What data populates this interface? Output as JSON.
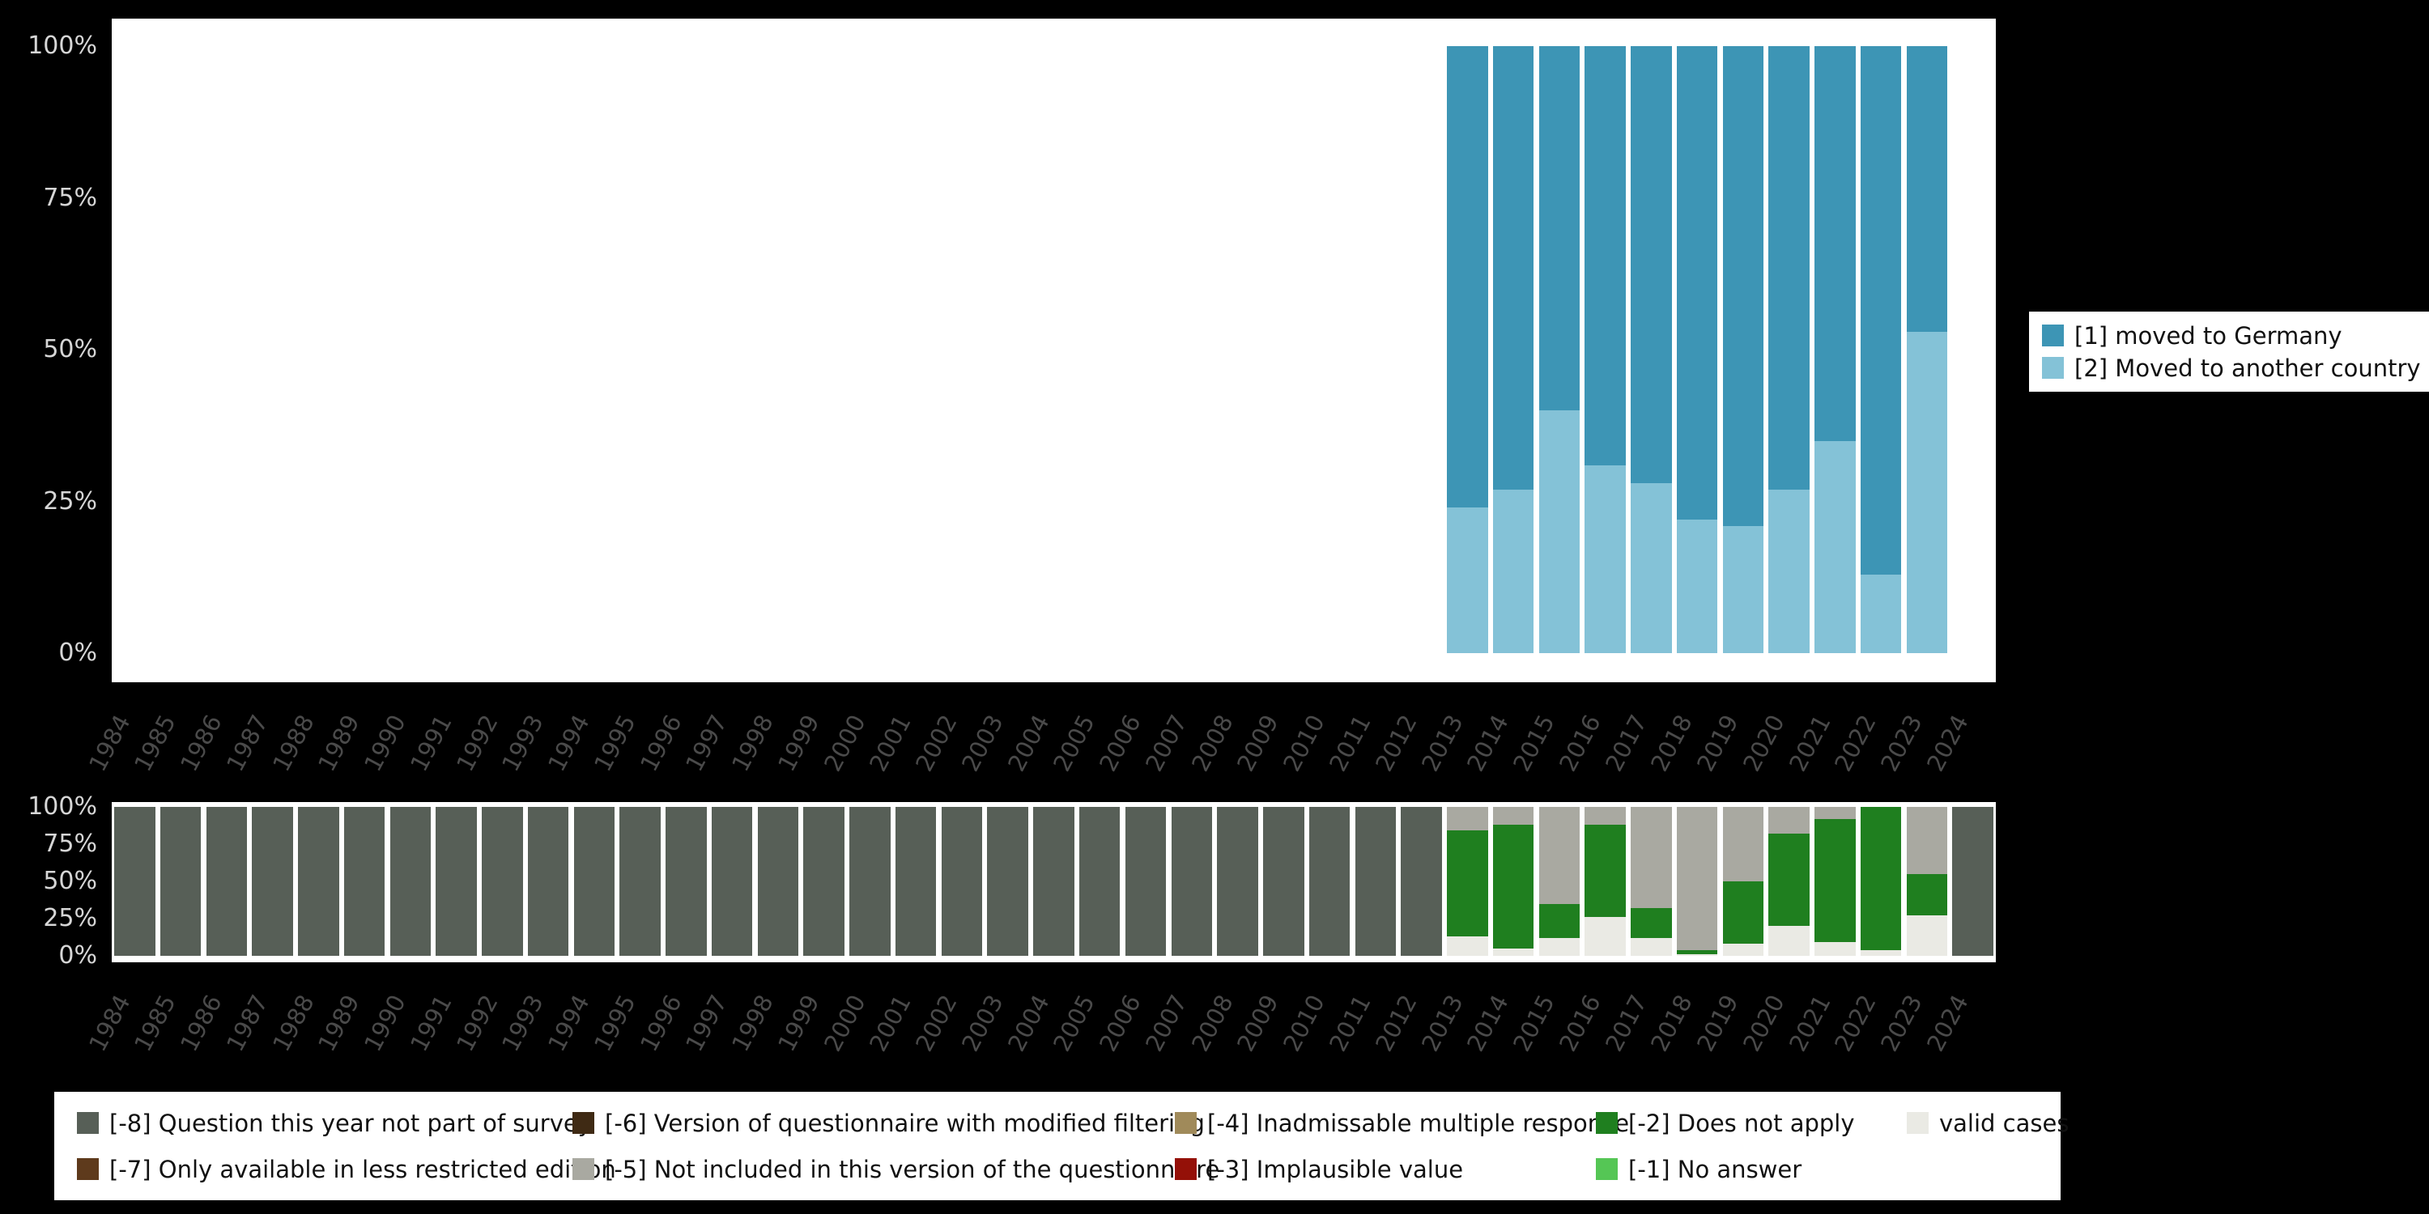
{
  "page": {
    "background": "#000000",
    "plot_background": "#ffffff",
    "y_axis_text_color": "#d6d6d6",
    "x_axis_text_color": "#4a4a4a"
  },
  "chart_data": {
    "years": [
      1984,
      1985,
      1986,
      1987,
      1988,
      1989,
      1990,
      1991,
      1992,
      1993,
      1994,
      1995,
      1996,
      1997,
      1998,
      1999,
      2000,
      2001,
      2002,
      2003,
      2004,
      2005,
      2006,
      2007,
      2008,
      2009,
      2010,
      2011,
      2012,
      2013,
      2014,
      2015,
      2016,
      2017,
      2018,
      2019,
      2020,
      2021,
      2022,
      2023,
      2024
    ],
    "values_chart": {
      "type": "bar",
      "stacked": true,
      "ylim": [
        0,
        100
      ],
      "yticks": [
        {
          "value": 100,
          "label": "100%"
        },
        {
          "value": 75,
          "label": "75%"
        },
        {
          "value": 50,
          "label": "50%"
        },
        {
          "value": 25,
          "label": "25%"
        },
        {
          "value": 0,
          "label": "0%"
        }
      ],
      "series_meta": [
        {
          "key": "moved_to_germany",
          "label": "[1] moved to Germany",
          "color": "#3d95b5"
        },
        {
          "key": "moved_to_another_country",
          "label": "[2] Moved to another country",
          "color": "#84c2d7"
        }
      ],
      "data": [
        {
          "year": 2013,
          "moved_to_germany": 76,
          "moved_to_another_country": 24
        },
        {
          "year": 2014,
          "moved_to_germany": 73,
          "moved_to_another_country": 27
        },
        {
          "year": 2015,
          "moved_to_germany": 60,
          "moved_to_another_country": 40
        },
        {
          "year": 2016,
          "moved_to_germany": 69,
          "moved_to_another_country": 31
        },
        {
          "year": 2017,
          "moved_to_germany": 72,
          "moved_to_another_country": 28
        },
        {
          "year": 2018,
          "moved_to_germany": 78,
          "moved_to_another_country": 22
        },
        {
          "year": 2019,
          "moved_to_germany": 79,
          "moved_to_another_country": 21
        },
        {
          "year": 2020,
          "moved_to_germany": 73,
          "moved_to_another_country": 27
        },
        {
          "year": 2021,
          "moved_to_germany": 65,
          "moved_to_another_country": 35
        },
        {
          "year": 2022,
          "moved_to_germany": 87,
          "moved_to_another_country": 13
        },
        {
          "year": 2023,
          "moved_to_germany": 47,
          "moved_to_another_country": 53
        }
      ]
    },
    "missing_chart": {
      "type": "bar",
      "stacked": true,
      "ylim": [
        0,
        100
      ],
      "yticks": [
        {
          "value": 100,
          "label": "100%"
        },
        {
          "value": 75,
          "label": "75%"
        },
        {
          "value": 50,
          "label": "50%"
        },
        {
          "value": 25,
          "label": "25%"
        },
        {
          "value": 0,
          "label": "0%"
        }
      ],
      "stack_order": [
        "valid",
        "-1",
        "-2",
        "-3",
        "-4",
        "-5",
        "-6",
        "-7",
        "-8"
      ],
      "legend_order": [
        "-8",
        "-7",
        "-6",
        "-5",
        "-4",
        "-3",
        "-2",
        "-1",
        "valid"
      ],
      "categories": {
        "-8": {
          "label": "[-8] Question this year not part of survey",
          "color": "#575f57"
        },
        "-7": {
          "label": "[-7] Only available in less restricted edition",
          "color": "#5e3a1c"
        },
        "-6": {
          "label": "[-6] Version of questionnaire with modified filtering",
          "color": "#3f2a14"
        },
        "-5": {
          "label": "[-5] Not included in this version of the questionnaire",
          "color": "#a9a9a1"
        },
        "-4": {
          "label": "[-4] Inadmissable multiple response",
          "color": "#a08a5a"
        },
        "-3": {
          "label": "[-3] Implausible value",
          "color": "#941008"
        },
        "-2": {
          "label": "[-2] Does not apply",
          "color": "#1f7f1f"
        },
        "-1": {
          "label": "[-1] No answer",
          "color": "#55c655"
        },
        "valid": {
          "label": "valid cases",
          "color": "#eaeae4"
        }
      },
      "default_segments": {
        "-8": 100
      },
      "data_overrides": {
        "2013": {
          "valid": 13,
          "-2": 71,
          "-5": 16
        },
        "2014": {
          "valid": 5,
          "-2": 83,
          "-5": 12
        },
        "2015": {
          "valid": 12,
          "-2": 23,
          "-5": 65
        },
        "2016": {
          "valid": 26,
          "-2": 62,
          "-5": 12
        },
        "2017": {
          "valid": 12,
          "-2": 20,
          "-5": 68
        },
        "2018": {
          "valid": 1,
          "-2": 3,
          "-5": 96
        },
        "2019": {
          "valid": 8,
          "-2": 42,
          "-5": 50
        },
        "2020": {
          "valid": 20,
          "-2": 62,
          "-5": 18
        },
        "2021": {
          "valid": 9,
          "-2": 83,
          "-5": 8
        },
        "2022": {
          "valid": 4,
          "-2": 96
        },
        "2023": {
          "valid": 27,
          "-2": 28,
          "-5": 45
        }
      }
    }
  }
}
